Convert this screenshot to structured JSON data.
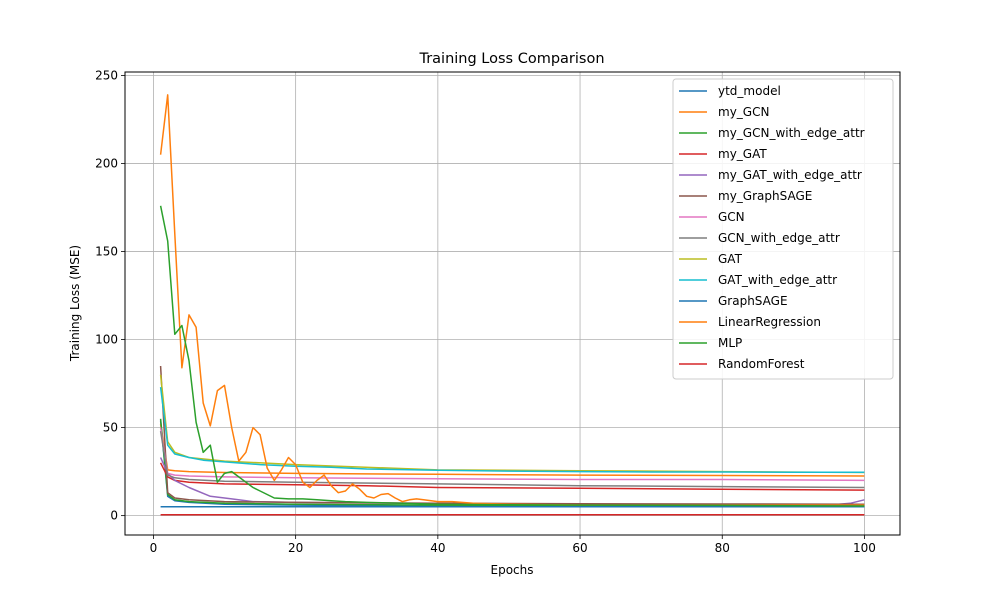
{
  "chart_data": {
    "type": "line",
    "title": "Training Loss Comparison",
    "xlabel": "Epochs",
    "ylabel": "Training Loss (MSE)",
    "xlim": [
      -4,
      105
    ],
    "ylim": [
      -11,
      252
    ],
    "xticks": [
      0,
      20,
      40,
      60,
      80,
      100
    ],
    "yticks": [
      0,
      50,
      100,
      150,
      200,
      250
    ],
    "grid": true,
    "legend_position": "top-right",
    "series": [
      {
        "name": "ytd_model",
        "color": "#1f77b4",
        "x": [
          1,
          2,
          3,
          5,
          10,
          20,
          40,
          60,
          80,
          100
        ],
        "y": [
          54,
          11,
          8.5,
          7.5,
          6.5,
          6,
          5.5,
          5.2,
          5.1,
          5
        ]
      },
      {
        "name": "my_GCN",
        "color": "#ff7f0e",
        "x": [
          1,
          2,
          3,
          5,
          10,
          20,
          40,
          60,
          80,
          100
        ],
        "y": [
          52,
          26,
          25.5,
          25,
          24.5,
          24,
          23.5,
          23,
          22.8,
          22.5
        ]
      },
      {
        "name": "my_GCN_with_edge_attr",
        "color": "#2ca02c",
        "x": [
          1,
          2,
          3,
          5,
          10,
          20,
          40,
          60,
          80,
          100
        ],
        "y": [
          55,
          12,
          9,
          8,
          7,
          6.5,
          6,
          5.8,
          5.6,
          5.5
        ]
      },
      {
        "name": "my_GAT",
        "color": "#d62728",
        "x": [
          1,
          2,
          3,
          5,
          10,
          20,
          30,
          40,
          60,
          80,
          100
        ],
        "y": [
          30,
          22,
          20,
          19,
          18,
          17.5,
          17,
          16,
          15.5,
          15,
          14.5
        ]
      },
      {
        "name": "my_GAT_with_edge_attr",
        "color": "#9467bd",
        "x": [
          1,
          2,
          3,
          5,
          8,
          11,
          14,
          20,
          40,
          60,
          80,
          95,
          98,
          100
        ],
        "y": [
          33,
          24,
          20,
          16,
          11,
          9.5,
          8,
          7.5,
          7,
          6.5,
          6,
          6,
          7,
          9
        ]
      },
      {
        "name": "my_GraphSAGE",
        "color": "#8c564b",
        "x": [
          1,
          2,
          3,
          5,
          10,
          20,
          40,
          60,
          80,
          100
        ],
        "y": [
          85,
          13,
          10,
          9,
          8,
          7.5,
          7,
          6.8,
          6.6,
          6.5
        ]
      },
      {
        "name": "GCN",
        "color": "#e377c2",
        "x": [
          1,
          2,
          3,
          5,
          10,
          20,
          40,
          60,
          80,
          100
        ],
        "y": [
          50,
          24,
          23,
          22.5,
          22,
          21.5,
          21,
          20.5,
          20.5,
          20
        ]
      },
      {
        "name": "GCN_with_edge_attr",
        "color": "#7f7f7f",
        "x": [
          1,
          2,
          3,
          5,
          10,
          20,
          40,
          60,
          80,
          100
        ],
        "y": [
          48,
          23,
          21.5,
          20.5,
          19.5,
          19,
          18,
          17,
          16.5,
          16
        ]
      },
      {
        "name": "GAT",
        "color": "#bcbd22",
        "x": [
          1,
          2,
          3,
          5,
          10,
          20,
          40,
          60,
          80,
          100
        ],
        "y": [
          80,
          42,
          36,
          33,
          31,
          29,
          26,
          25.5,
          25,
          24.5
        ]
      },
      {
        "name": "GAT_with_edge_attr",
        "color": "#17becf",
        "x": [
          1,
          2,
          3,
          5,
          7,
          10,
          15,
          20,
          25,
          30,
          40,
          50,
          60,
          70,
          80,
          90,
          100
        ],
        "y": [
          73,
          40,
          35,
          33,
          31.5,
          30.5,
          29,
          28,
          27.5,
          26.5,
          25.8,
          25.3,
          25,
          24.8,
          24.8,
          24.7,
          24.6
        ]
      },
      {
        "name": "GraphSAGE",
        "color": "#1f77b4",
        "x": [
          1,
          100
        ],
        "y": [
          5,
          5
        ]
      },
      {
        "name": "LinearRegression",
        "color": "#ff7f0e",
        "x": [
          1,
          2,
          3,
          4,
          5,
          6,
          7,
          8,
          9,
          10,
          11,
          12,
          13,
          14,
          15,
          16,
          17,
          18,
          19,
          20,
          21,
          22,
          23,
          24,
          25,
          26,
          27,
          28,
          29,
          30,
          31,
          32,
          33,
          34,
          35,
          36,
          37,
          38,
          40,
          42,
          45,
          50,
          60,
          80,
          100
        ],
        "y": [
          205,
          239,
          160,
          84,
          114,
          107,
          64,
          51,
          71,
          74,
          50,
          31,
          36,
          50,
          46,
          27,
          20,
          26,
          33,
          29,
          19,
          16,
          20,
          23,
          17,
          13,
          14,
          18,
          15,
          11,
          10,
          12,
          12.5,
          10,
          8,
          9,
          9.5,
          9,
          8,
          8,
          7,
          6.5,
          6,
          6,
          6
        ]
      },
      {
        "name": "MLP",
        "color": "#2ca02c",
        "x": [
          1,
          2,
          3,
          4,
          5,
          6,
          7,
          8,
          9,
          10,
          11,
          12,
          13,
          14,
          15,
          17,
          19,
          21,
          23,
          25,
          27,
          30,
          35,
          40,
          50,
          60,
          80,
          100
        ],
        "y": [
          176,
          156,
          103,
          108,
          88,
          53,
          36,
          40,
          19,
          24,
          25,
          22,
          19,
          16,
          14,
          10,
          9.5,
          9.5,
          9,
          8.5,
          8,
          7.5,
          7,
          6.5,
          6.2,
          6,
          5.8,
          5.5
        ]
      },
      {
        "name": "RandomForest",
        "color": "#d62728",
        "x": [
          1,
          100
        ],
        "y": [
          0.5,
          0.5
        ]
      }
    ]
  }
}
